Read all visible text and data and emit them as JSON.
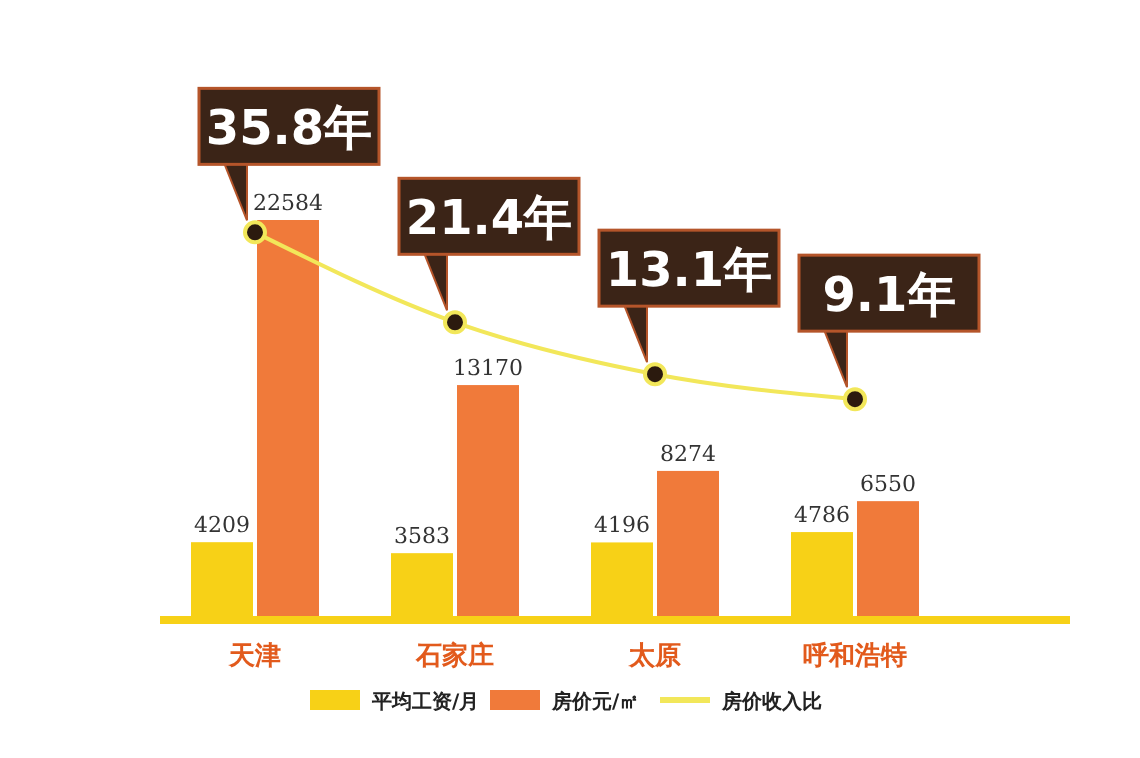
{
  "chart_data": {
    "type": "bar",
    "categories": [
      "天津",
      "石家庄",
      "太原",
      "呼和浩特"
    ],
    "series": [
      {
        "name": "平均工资/月",
        "color": "#f7d117",
        "values": [
          4209,
          3583,
          4196,
          4786
        ],
        "value_labels": [
          "4209",
          "3583",
          "4196",
          "4786"
        ]
      },
      {
        "name": "房价元/㎡",
        "color": "#f07a3a",
        "values": [
          22584,
          13170,
          8274,
          6550
        ],
        "value_labels": [
          "22584",
          "13170",
          "8274",
          "6550"
        ]
      },
      {
        "name": "房价收入比",
        "type": "line",
        "axis": "y2",
        "color": "#f2e75a",
        "marker": "circle",
        "values": [
          35.8,
          21.4,
          13.1,
          9.1
        ],
        "value_labels": [
          "35.8年",
          "21.4年",
          "13.1年",
          "9.1年"
        ]
      }
    ],
    "legend": "bottom"
  }
}
